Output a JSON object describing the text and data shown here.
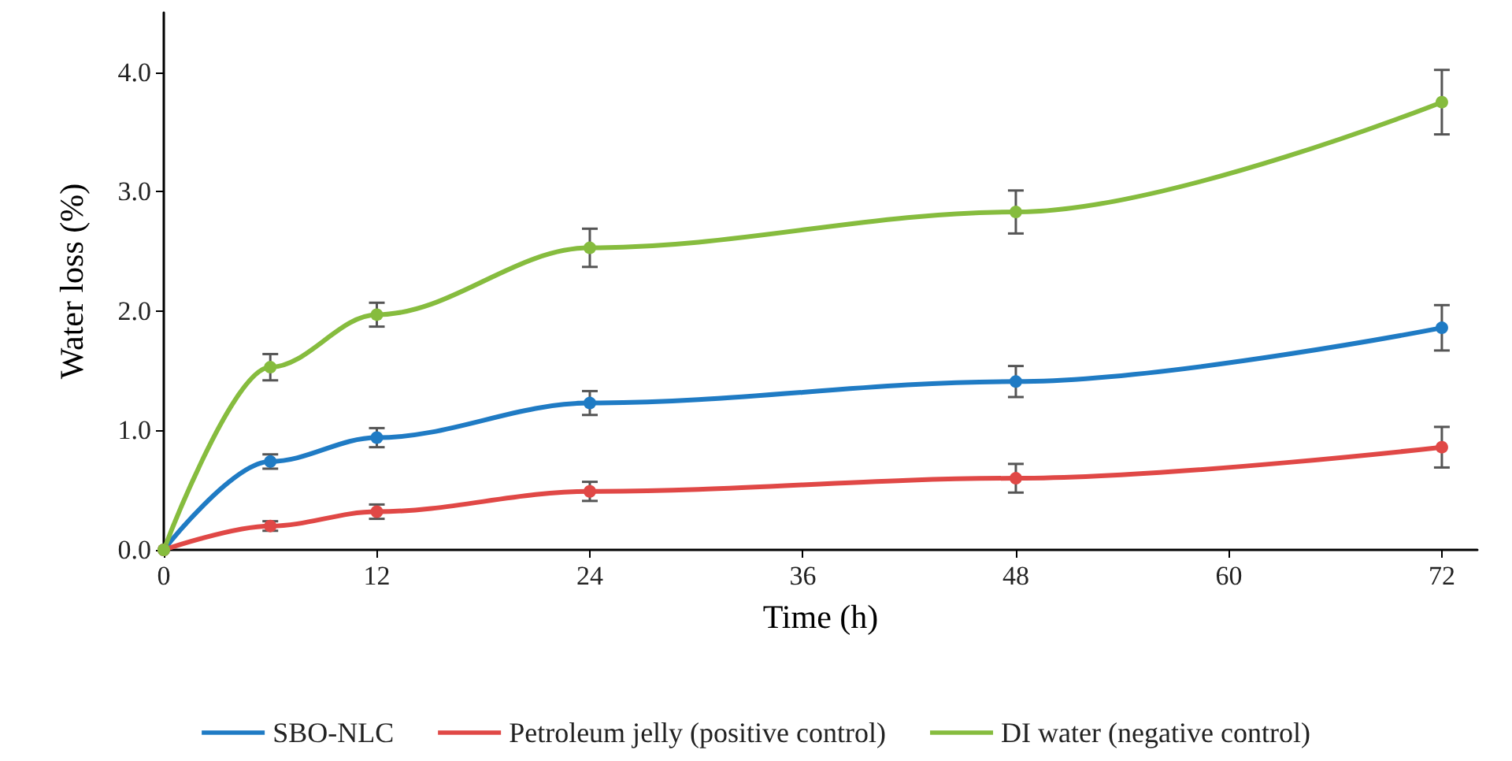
{
  "chart_data": {
    "type": "line",
    "xlabel": "Time (h)",
    "ylabel": "Water loss (%)",
    "x": [
      0,
      6,
      12,
      24,
      48,
      72
    ],
    "series": [
      {
        "name": "SBO-NLC",
        "color": "#1f7bc4",
        "values": [
          0,
          0.74,
          0.94,
          1.23,
          1.41,
          1.86
        ],
        "errors": [
          null,
          0.06,
          0.08,
          0.1,
          0.13,
          0.19
        ]
      },
      {
        "name": "Petroleum jelly (positive control)",
        "color": "#e04846",
        "values": [
          0,
          0.2,
          0.32,
          0.49,
          0.6,
          0.86
        ],
        "errors": [
          null,
          0.04,
          0.06,
          0.08,
          0.12,
          0.17
        ]
      },
      {
        "name": "DI water (negative control)",
        "color": "#86bc3e",
        "values": [
          0,
          1.53,
          1.97,
          2.53,
          2.83,
          3.75
        ],
        "errors": [
          null,
          0.11,
          0.1,
          0.16,
          0.18,
          0.27
        ]
      }
    ],
    "xlim": [
      0,
      74
    ],
    "xticks": [
      0,
      12,
      24,
      36,
      48,
      60,
      72
    ],
    "ylim": [
      0,
      4.5
    ],
    "yticks": [
      {
        "value": 0,
        "label": "0.0"
      },
      {
        "value": 1,
        "label": "1.0"
      },
      {
        "value": 2,
        "label": "2.0"
      },
      {
        "value": 3,
        "label": "3.0"
      },
      {
        "value": 4,
        "label": "4.0"
      }
    ],
    "grid": false,
    "legend": "bottom",
    "marker": "circle",
    "line_style": "solid"
  }
}
